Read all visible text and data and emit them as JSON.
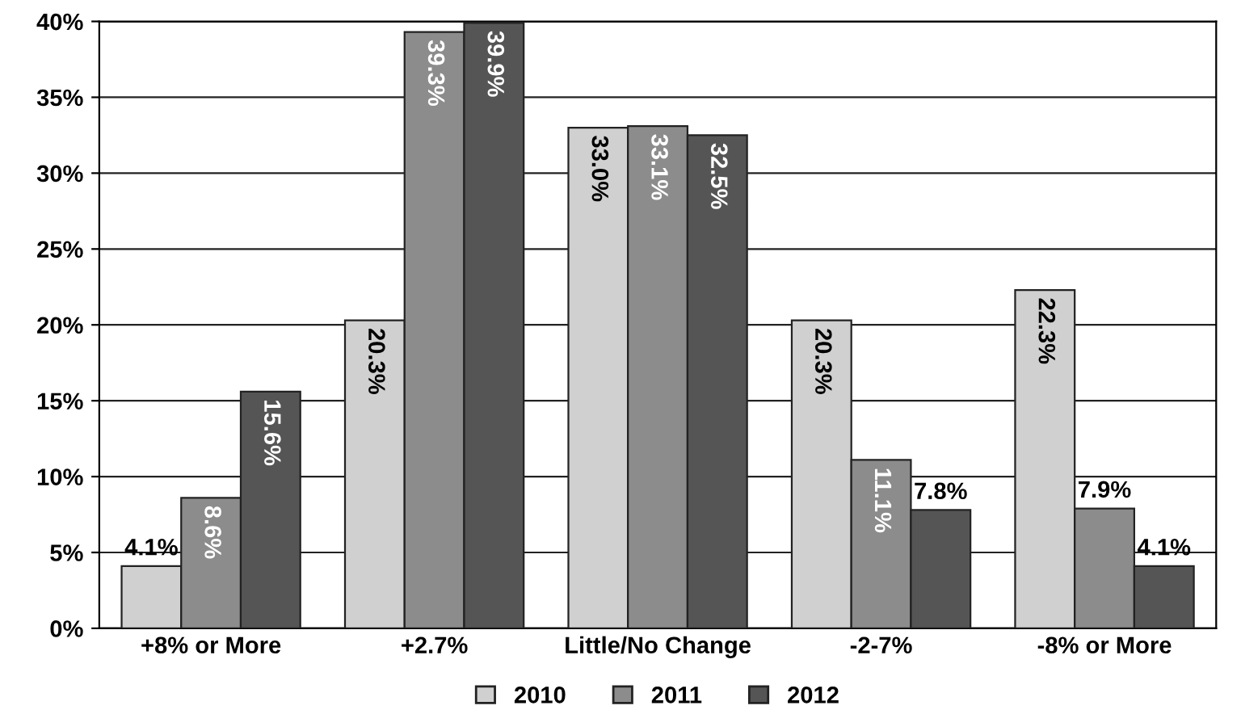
{
  "chart_data": {
    "type": "bar",
    "categories": [
      "+8% or More",
      "+2.7%",
      "Little/No Change",
      "-2-7%",
      "-8% or More"
    ],
    "series": [
      {
        "name": "2010",
        "color": "#d0d0d0",
        "values": [
          4.1,
          20.3,
          33.0,
          20.3,
          22.3
        ],
        "value_labels": [
          "4.1%",
          "20.3%",
          "33.0%",
          "20.3%",
          "22.3%"
        ]
      },
      {
        "name": "2011",
        "color": "#8c8c8c",
        "values": [
          8.6,
          39.3,
          33.1,
          11.1,
          7.9
        ],
        "value_labels": [
          "8.6%",
          "39.3%",
          "33.1%",
          "11.1%",
          "7.9%"
        ]
      },
      {
        "name": "2012",
        "color": "#555555",
        "values": [
          15.6,
          39.9,
          32.5,
          7.8,
          4.1
        ],
        "value_labels": [
          "15.6%",
          "39.9%",
          "32.5%",
          "7.8%",
          "4.1%"
        ]
      }
    ],
    "ylim": [
      0,
      40
    ],
    "yticks": [
      {
        "value": 0,
        "label": "0%"
      },
      {
        "value": 5,
        "label": "5%"
      },
      {
        "value": 10,
        "label": "10%"
      },
      {
        "value": 15,
        "label": "15%"
      },
      {
        "value": 20,
        "label": "20%"
      },
      {
        "value": 25,
        "label": "25%"
      },
      {
        "value": 30,
        "label": "30%"
      },
      {
        "value": 35,
        "label": "35%"
      },
      {
        "value": 40,
        "label": "40%"
      }
    ],
    "grid": "y",
    "legend": "bottom"
  }
}
